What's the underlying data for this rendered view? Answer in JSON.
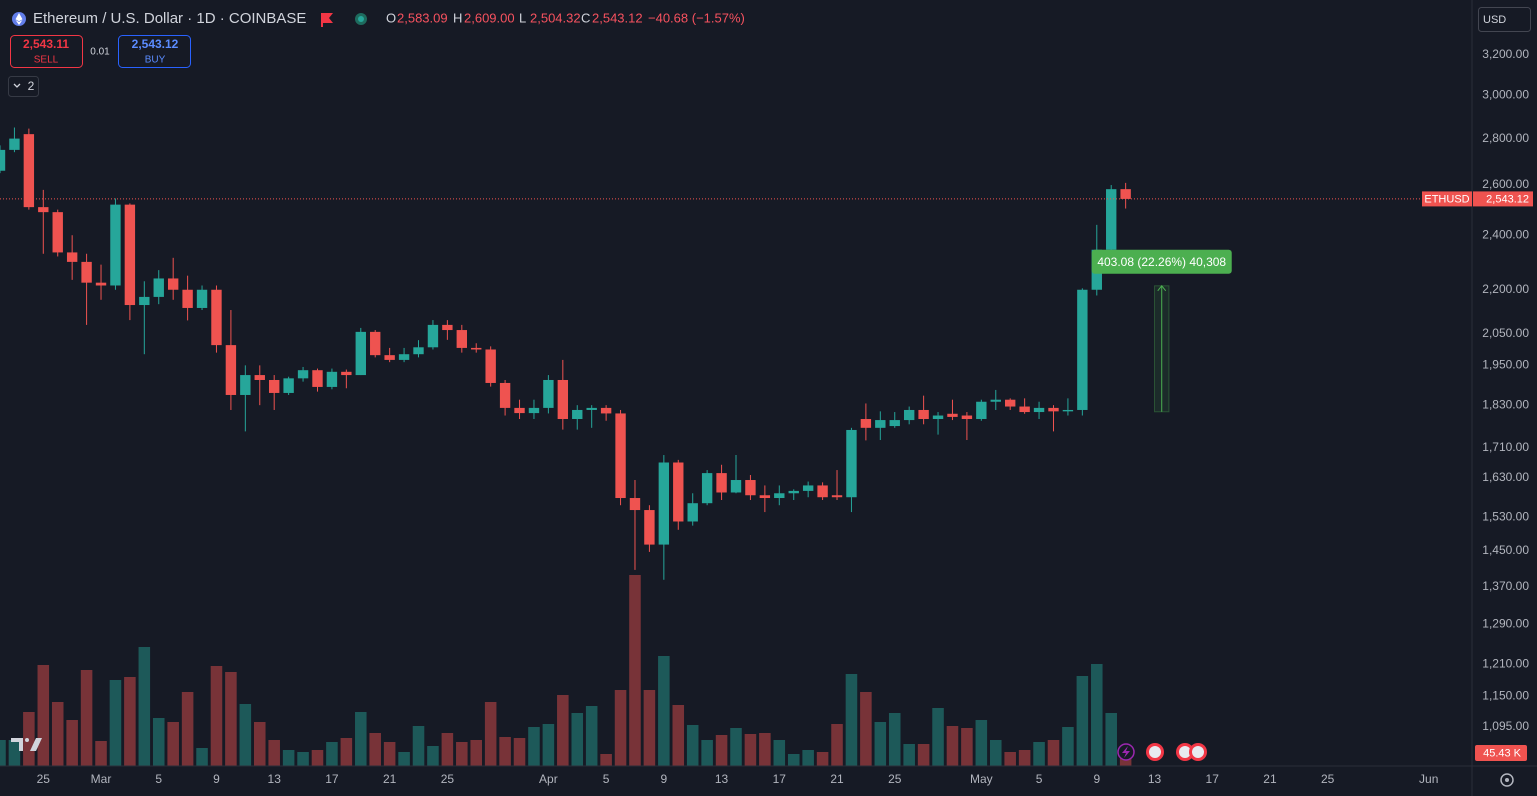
{
  "header": {
    "symbol": "Ethereum / U.S. Dollar · 1D · COINBASE",
    "ohlc": [
      {
        "key": "O",
        "value": "2,583.09"
      },
      {
        "key": "H",
        "value": "2,609.00"
      },
      {
        "key": "L",
        "value": "2,504.32"
      },
      {
        "key": "C",
        "value": "2,543.12"
      }
    ],
    "change": "−40.68 (−1.57%)"
  },
  "trade": {
    "sell_price": "2,543.11",
    "sell": "SELL",
    "spread": "0.01",
    "buy_price": "2,543.12",
    "buy": "BUY"
  },
  "indicators_toggle": "2",
  "currency": "USD",
  "chart_data": {
    "type": "candlestick",
    "log_y": true,
    "grid": false,
    "x": [
      "02-22",
      "02-23",
      "02-24",
      "02-25",
      "02-26",
      "02-27",
      "02-28",
      "03-01",
      "03-02",
      "03-03",
      "03-04",
      "03-05",
      "03-06",
      "03-07",
      "03-08",
      "03-09",
      "03-10",
      "03-11",
      "03-12",
      "03-13",
      "03-14",
      "03-15",
      "03-16",
      "03-17",
      "03-18",
      "03-19",
      "03-20",
      "03-21",
      "03-22",
      "03-23",
      "03-24",
      "03-25",
      "03-26",
      "03-27",
      "03-28",
      "03-29",
      "03-30",
      "03-31",
      "04-01",
      "04-02",
      "04-03",
      "04-04",
      "04-05",
      "04-06",
      "04-07",
      "04-08",
      "04-09",
      "04-10",
      "04-11",
      "04-12",
      "04-13",
      "04-14",
      "04-15",
      "04-16",
      "04-17",
      "04-18",
      "04-19",
      "04-20",
      "04-21",
      "04-22",
      "04-23",
      "04-24",
      "04-25",
      "04-26",
      "04-27",
      "04-28",
      "04-29",
      "04-30",
      "05-01",
      "05-02",
      "05-03",
      "05-04",
      "05-05",
      "05-06",
      "05-07",
      "05-08",
      "05-09",
      "05-10",
      "05-11"
    ],
    "series": [
      {
        "name": "ETHUSD",
        "up_color": "#26a69a",
        "down_color": "#ef5350",
        "open": [
          2660,
          2750,
          2820,
          2510,
          2490,
          2335,
          2300,
          2225,
          2215,
          2520,
          2147,
          2175,
          2240,
          2200,
          2137,
          2200,
          2014,
          1860,
          1920,
          1905,
          1866,
          1910,
          1935,
          1884,
          1930,
          1920,
          2057,
          1982,
          1967,
          1985,
          2007,
          2080,
          2063,
          2005,
          2000,
          1896,
          1822,
          1807,
          1822,
          1905,
          1790,
          1816,
          1822,
          1806,
          1578,
          1548,
          1465,
          1670,
          1520,
          1565,
          1642,
          1592,
          1624,
          1585,
          1578,
          1590,
          1596,
          1610,
          1585,
          1580,
          1790,
          1765,
          1770,
          1787,
          1816,
          1790,
          1805,
          1800,
          1790,
          1840,
          1846,
          1826,
          1810,
          1822,
          1812,
          1816,
          2200,
          2345,
          2583.09
        ],
        "high": [
          2770,
          2850,
          2845,
          2580,
          2500,
          2400,
          2330,
          2290,
          2545,
          2525,
          2230,
          2270,
          2315,
          2250,
          2215,
          2215,
          2130,
          1950,
          1950,
          1920,
          1915,
          1945,
          1940,
          1940,
          1937,
          2070,
          2063,
          2005,
          2005,
          2030,
          2096,
          2096,
          2080,
          2020,
          2010,
          1905,
          1846,
          1846,
          1920,
          1967,
          1830,
          1830,
          1830,
          1816,
          1624,
          1560,
          1690,
          1677,
          1590,
          1650,
          1664,
          1690,
          1637,
          1610,
          1610,
          1600,
          1620,
          1618,
          1650,
          1765,
          1835,
          1812,
          1810,
          1826,
          1858,
          1810,
          1846,
          1810,
          1846,
          1875,
          1850,
          1850,
          1840,
          1830,
          1850,
          2205,
          2440,
          2600,
          2609
        ],
        "low": [
          2650,
          2740,
          2500,
          2330,
          2320,
          2235,
          2080,
          2165,
          2200,
          2096,
          1985,
          2150,
          2165,
          2095,
          2130,
          1990,
          1816,
          1755,
          1830,
          1816,
          1860,
          1900,
          1870,
          1877,
          1880,
          1920,
          1975,
          1960,
          1960,
          1975,
          2000,
          2031,
          1990,
          1990,
          1885,
          1800,
          1790,
          1790,
          1806,
          1760,
          1760,
          1765,
          1785,
          1560,
          1407,
          1448,
          1385,
          1500,
          1510,
          1560,
          1573,
          1590,
          1573,
          1543,
          1560,
          1573,
          1580,
          1573,
          1573,
          1543,
          1730,
          1731,
          1765,
          1775,
          1775,
          1746,
          1787,
          1731,
          1785,
          1816,
          1816,
          1805,
          1790,
          1755,
          1800,
          1800,
          2180,
          2330,
          2504.32
        ],
        "close": [
          2750,
          2800,
          2510,
          2490,
          2335,
          2300,
          2225,
          2215,
          2520,
          2147,
          2175,
          2240,
          2200,
          2137,
          2200,
          2014,
          1860,
          1920,
          1905,
          1866,
          1910,
          1935,
          1884,
          1930,
          1920,
          2057,
          1982,
          1967,
          1985,
          2007,
          2080,
          2063,
          2005,
          2000,
          1896,
          1822,
          1807,
          1822,
          1905,
          1790,
          1816,
          1822,
          1806,
          1578,
          1548,
          1465,
          1670,
          1520,
          1565,
          1642,
          1592,
          1624,
          1585,
          1578,
          1590,
          1596,
          1610,
          1580,
          1580,
          1759,
          1765,
          1787,
          1787,
          1816,
          1790,
          1800,
          1796,
          1790,
          1840,
          1846,
          1826,
          1810,
          1822,
          1812,
          1816,
          2200,
          2345,
          2583,
          2543.12
        ]
      }
    ],
    "volume": {
      "values": [
        104000,
        104000,
        216000,
        404000,
        256000,
        184000,
        384000,
        100000,
        344000,
        356000,
        476000,
        192000,
        176000,
        296000,
        72000,
        400000,
        376000,
        248000,
        176000,
        104000,
        64000,
        56000,
        64000,
        96000,
        112000,
        216000,
        132000,
        96000,
        56000,
        160000,
        80000,
        132000,
        96000,
        104000,
        256000,
        116000,
        112000,
        156000,
        168000,
        284000,
        212000,
        240000,
        48000,
        304000,
        764000,
        304000,
        440000,
        244000,
        164000,
        104000,
        124000,
        152000,
        128000,
        132000,
        104000,
        48000,
        64000,
        56000,
        168000,
        368000,
        296000,
        176000,
        212000,
        88000,
        88000,
        232000,
        160000,
        152000,
        184000,
        104000,
        56000,
        64000,
        96000,
        104000,
        156000,
        360000,
        408000,
        212000,
        45430
      ],
      "value_labels": [
        null,
        null,
        null,
        null,
        null,
        null,
        null,
        null,
        null,
        null,
        null,
        null,
        null,
        null,
        null,
        null,
        null,
        null,
        null,
        null,
        null,
        null,
        null,
        null,
        null,
        null,
        null,
        null,
        null,
        null,
        null,
        null,
        null,
        null,
        null,
        null,
        null,
        null,
        null,
        null,
        null,
        null,
        null,
        null,
        null,
        null,
        null,
        null,
        null,
        null,
        null,
        null,
        null,
        null,
        null,
        null,
        null,
        null,
        null,
        null,
        null,
        null,
        null,
        null,
        null,
        null,
        null,
        null,
        null,
        null,
        null,
        null,
        null,
        null,
        null,
        null,
        null,
        null,
        "45.43 K"
      ]
    },
    "last_price": {
      "value": 2543.12,
      "label": "2,543.12"
    },
    "measure": {
      "from": 1810.82,
      "to": 2213.9,
      "x": [
        "05-13",
        "05-14"
      ],
      "label": "403.08 (22.26%) 40,308"
    },
    "xlim": [
      "02-22",
      "06-04"
    ],
    "ylim": [
      1029,
      3493
    ],
    "y2lim": [
      0,
      1000000
    ],
    "yticks": [
      {
        "value": 3200,
        "label": "3,200.00"
      },
      {
        "value": 3000,
        "label": "3,000.00"
      },
      {
        "value": 2800,
        "label": "2,800.00"
      },
      {
        "value": 2600,
        "label": "2,600.00"
      },
      {
        "value": 2400,
        "label": "2,400.00"
      },
      {
        "value": 2200,
        "label": "2,200.00"
      },
      {
        "value": 2050,
        "label": "2,050.00"
      },
      {
        "value": 1950,
        "label": "1,950.00"
      },
      {
        "value": 1830,
        "label": "1,830.00"
      },
      {
        "value": 1710,
        "label": "1,710.00"
      },
      {
        "value": 1630,
        "label": "1,630.00"
      },
      {
        "value": 1530,
        "label": "1,530.00"
      },
      {
        "value": 1450,
        "label": "1,450.00"
      },
      {
        "value": 1370,
        "label": "1,370.00"
      },
      {
        "value": 1290,
        "label": "1,290.00"
      },
      {
        "value": 1210,
        "label": "1,210.00"
      },
      {
        "value": 1150,
        "label": "1,150.00"
      },
      {
        "value": 1095,
        "label": "1,095.00"
      }
    ],
    "xticks": [
      {
        "value": "02-25",
        "label": "25"
      },
      {
        "value": "03-01",
        "label": "Mar"
      },
      {
        "value": "03-05",
        "label": "5"
      },
      {
        "value": "03-09",
        "label": "9"
      },
      {
        "value": "03-13",
        "label": "13"
      },
      {
        "value": "03-17",
        "label": "17"
      },
      {
        "value": "03-21",
        "label": "21"
      },
      {
        "value": "03-25",
        "label": "25"
      },
      {
        "value": "04-01",
        "label": "Apr"
      },
      {
        "value": "04-05",
        "label": "5"
      },
      {
        "value": "04-09",
        "label": "9"
      },
      {
        "value": "04-13",
        "label": "13"
      },
      {
        "value": "04-17",
        "label": "17"
      },
      {
        "value": "04-21",
        "label": "21"
      },
      {
        "value": "04-25",
        "label": "25"
      },
      {
        "value": "05-01",
        "label": "May"
      },
      {
        "value": "05-05",
        "label": "5"
      },
      {
        "value": "05-09",
        "label": "9"
      },
      {
        "value": "05-13",
        "label": "13"
      },
      {
        "value": "05-17",
        "label": "17"
      },
      {
        "value": "05-21",
        "label": "21"
      },
      {
        "value": "05-25",
        "label": "25"
      },
      {
        "value": "06-01",
        "label": "Jun"
      }
    ]
  }
}
